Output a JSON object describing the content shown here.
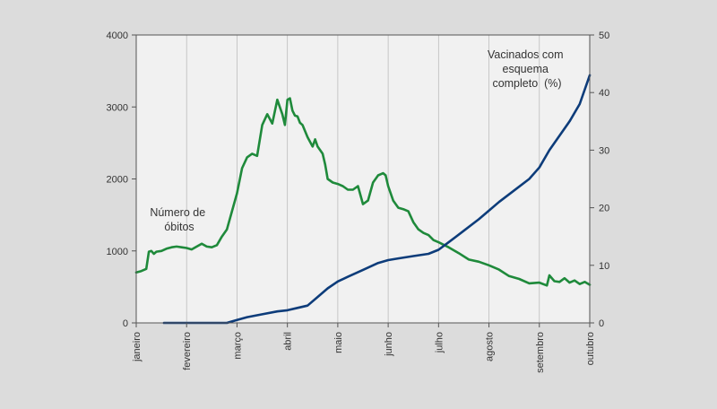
{
  "chart_data": {
    "type": "line",
    "title": "",
    "x_axis": {
      "categories": [
        "janeiro",
        "fevereiro",
        "março",
        "abril",
        "maio",
        "junho",
        "julho",
        "agosto",
        "setembro",
        "outubro"
      ]
    },
    "y_left": {
      "label": "Número de óbitos",
      "ylim": [
        0,
        4000
      ],
      "ticks": [
        0,
        1000,
        2000,
        3000,
        4000
      ]
    },
    "y_right": {
      "label": "Vacinados com esquema completo (%)",
      "ylim": [
        0,
        50
      ],
      "ticks": [
        0,
        10,
        20,
        30,
        40,
        50
      ]
    },
    "series": [
      {
        "name": "Número de óbitos",
        "axis": "left",
        "color": "#1f8a3b",
        "x": [
          0,
          0.1,
          0.2,
          0.25,
          0.3,
          0.35,
          0.4,
          0.5,
          0.6,
          0.7,
          0.8,
          0.9,
          1.0,
          1.1,
          1.2,
          1.3,
          1.4,
          1.5,
          1.6,
          1.7,
          1.8,
          1.9,
          2.0,
          2.1,
          2.2,
          2.3,
          2.4,
          2.5,
          2.6,
          2.7,
          2.8,
          2.9,
          2.95,
          3.0,
          3.05,
          3.1,
          3.15,
          3.2,
          3.25,
          3.3,
          3.4,
          3.5,
          3.55,
          3.6,
          3.7,
          3.75,
          3.8,
          3.9,
          4.0,
          4.1,
          4.2,
          4.3,
          4.4,
          4.5,
          4.6,
          4.7,
          4.8,
          4.9,
          4.95,
          5.0,
          5.1,
          5.2,
          5.3,
          5.4,
          5.5,
          5.6,
          5.7,
          5.8,
          5.9,
          6.0,
          6.2,
          6.4,
          6.6,
          6.8,
          7.0,
          7.2,
          7.4,
          7.6,
          7.8,
          8.0,
          8.15,
          8.2,
          8.3,
          8.4,
          8.5,
          8.6,
          8.7,
          8.8,
          8.9,
          9.0
        ],
        "values": [
          700,
          720,
          750,
          990,
          1000,
          960,
          990,
          1000,
          1030,
          1050,
          1060,
          1050,
          1040,
          1020,
          1060,
          1100,
          1060,
          1050,
          1080,
          1200,
          1300,
          1550,
          1800,
          2150,
          2300,
          2350,
          2320,
          2750,
          2900,
          2770,
          3100,
          2900,
          2750,
          3100,
          3120,
          2950,
          2880,
          2870,
          2780,
          2750,
          2580,
          2450,
          2550,
          2450,
          2350,
          2200,
          2000,
          1950,
          1930,
          1900,
          1850,
          1850,
          1900,
          1650,
          1700,
          1950,
          2050,
          2080,
          2050,
          1900,
          1700,
          1600,
          1580,
          1550,
          1400,
          1300,
          1250,
          1220,
          1150,
          1120,
          1050,
          970,
          880,
          850,
          800,
          740,
          650,
          610,
          550,
          560,
          520,
          660,
          580,
          570,
          620,
          560,
          590,
          540,
          570,
          530
        ]
      },
      {
        "name": "Vacinados com esquema completo (%)",
        "axis": "right",
        "color": "#0d3c7a",
        "x": [
          0.55,
          0.8,
          1.0,
          1.2,
          1.5,
          1.8,
          2.0,
          2.2,
          2.5,
          2.8,
          3.0,
          3.2,
          3.4,
          3.6,
          3.8,
          4.0,
          4.2,
          4.5,
          4.8,
          5.0,
          5.2,
          5.5,
          5.8,
          6.0,
          6.2,
          6.5,
          6.8,
          7.0,
          7.2,
          7.5,
          7.8,
          8.0,
          8.2,
          8.4,
          8.6,
          8.8,
          9.0
        ],
        "values": [
          0,
          0,
          0,
          0,
          0,
          0,
          0.5,
          1.0,
          1.5,
          2.0,
          2.2,
          2.6,
          3.0,
          4.5,
          6.0,
          7.2,
          8.0,
          9.2,
          10.4,
          10.9,
          11.2,
          11.6,
          12.0,
          12.7,
          14.0,
          16.0,
          18.0,
          19.5,
          21.0,
          23.0,
          25.0,
          27.0,
          30.0,
          32.5,
          35.0,
          38.0,
          43.0
        ]
      }
    ],
    "annotations": {
      "left_series_label": [
        "Número de",
        "óbitos"
      ],
      "right_series_label": [
        "Vacinados com",
        "esquema",
        "completo  (%)"
      ]
    },
    "grid": {
      "vertical": true,
      "horizontal": false
    }
  }
}
